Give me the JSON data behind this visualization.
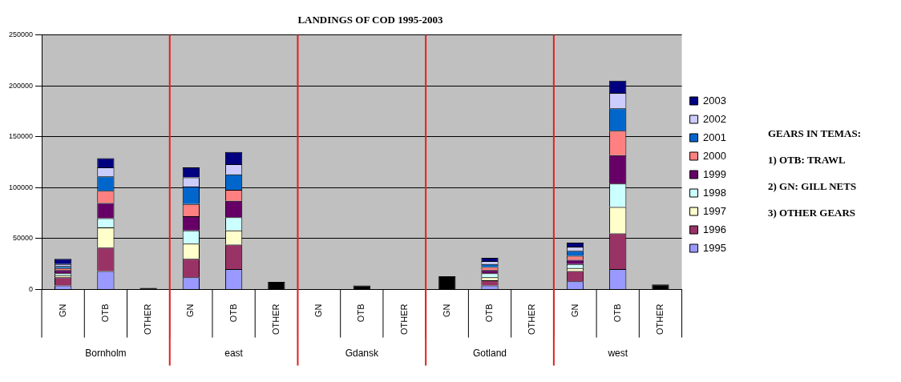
{
  "chart_data": {
    "type": "bar",
    "title": "LANDINGS OF COD 1995-2003",
    "categories": [
      "GN",
      "OTB",
      "OTHER",
      "GN",
      "OTB",
      "OTHER",
      "GN",
      "OTB",
      "OTHER",
      "GN",
      "OTB",
      "OTHER",
      "GN",
      "OTB",
      "OTHER"
    ],
    "stacked": true,
    "series": [
      {
        "name": "1995",
        "color": "#9999ff",
        "values": [
          4000,
          18000,
          null,
          12000,
          20000,
          null,
          null,
          null,
          null,
          null,
          4000,
          null,
          8000,
          20000,
          null
        ]
      },
      {
        "name": "1996",
        "color": "#993366",
        "values": [
          8000,
          23000,
          null,
          18000,
          24000,
          null,
          null,
          null,
          null,
          null,
          5000,
          null,
          10000,
          35000,
          null
        ]
      },
      {
        "name": "1997",
        "color": "#ffffcc",
        "values": [
          2000,
          20000,
          null,
          15000,
          14000,
          null,
          null,
          null,
          null,
          null,
          3000,
          null,
          3000,
          26000,
          null
        ]
      },
      {
        "name": "1998",
        "color": "#ccffff",
        "values": [
          2000,
          9000,
          null,
          13000,
          13000,
          null,
          null,
          null,
          null,
          null,
          4000,
          null,
          4000,
          23000,
          null
        ]
      },
      {
        "name": "1999",
        "color": "#660066",
        "values": [
          3000,
          15000,
          null,
          14000,
          16000,
          null,
          null,
          null,
          null,
          null,
          3000,
          null,
          4000,
          28000,
          null
        ]
      },
      {
        "name": "2000",
        "color": "#ff8080",
        "values": [
          2000,
          12000,
          null,
          12000,
          11000,
          null,
          null,
          null,
          null,
          null,
          3000,
          null,
          4000,
          24000,
          null
        ]
      },
      {
        "name": "2001",
        "color": "#0066cc",
        "values": [
          2000,
          14000,
          null,
          17000,
          15000,
          null,
          null,
          null,
          null,
          null,
          3000,
          null,
          5000,
          22000,
          null
        ]
      },
      {
        "name": "2002",
        "color": "#ccccff",
        "values": [
          2000,
          9000,
          null,
          9000,
          10000,
          null,
          null,
          null,
          null,
          null,
          3000,
          null,
          4000,
          15000,
          null
        ]
      },
      {
        "name": "2003",
        "color": "#000080",
        "values": [
          5000,
          9000,
          null,
          10000,
          12000,
          null,
          null,
          null,
          null,
          null,
          3000,
          null,
          4000,
          12000,
          null
        ]
      },
      {
        "color": "#000000",
        "values": [
          null,
          null,
          1500,
          null,
          null,
          7500,
          null,
          4000,
          null,
          13000,
          null,
          null,
          null,
          null,
          5000
        ]
      }
    ],
    "ylim": [
      0,
      250000
    ],
    "yticks": [
      0,
      50000,
      100000,
      150000,
      200000,
      250000
    ],
    "grid": "y",
    "legend": "right",
    "annotations": [
      "Bornholm",
      "east",
      "Gdansk",
      "Gotland",
      "west",
      "GEARS IN TEMAS:",
      "1) OTB: TRAWL",
      "2) GN: GILL NETS",
      "3) OTHER GEARS"
    ]
  }
}
